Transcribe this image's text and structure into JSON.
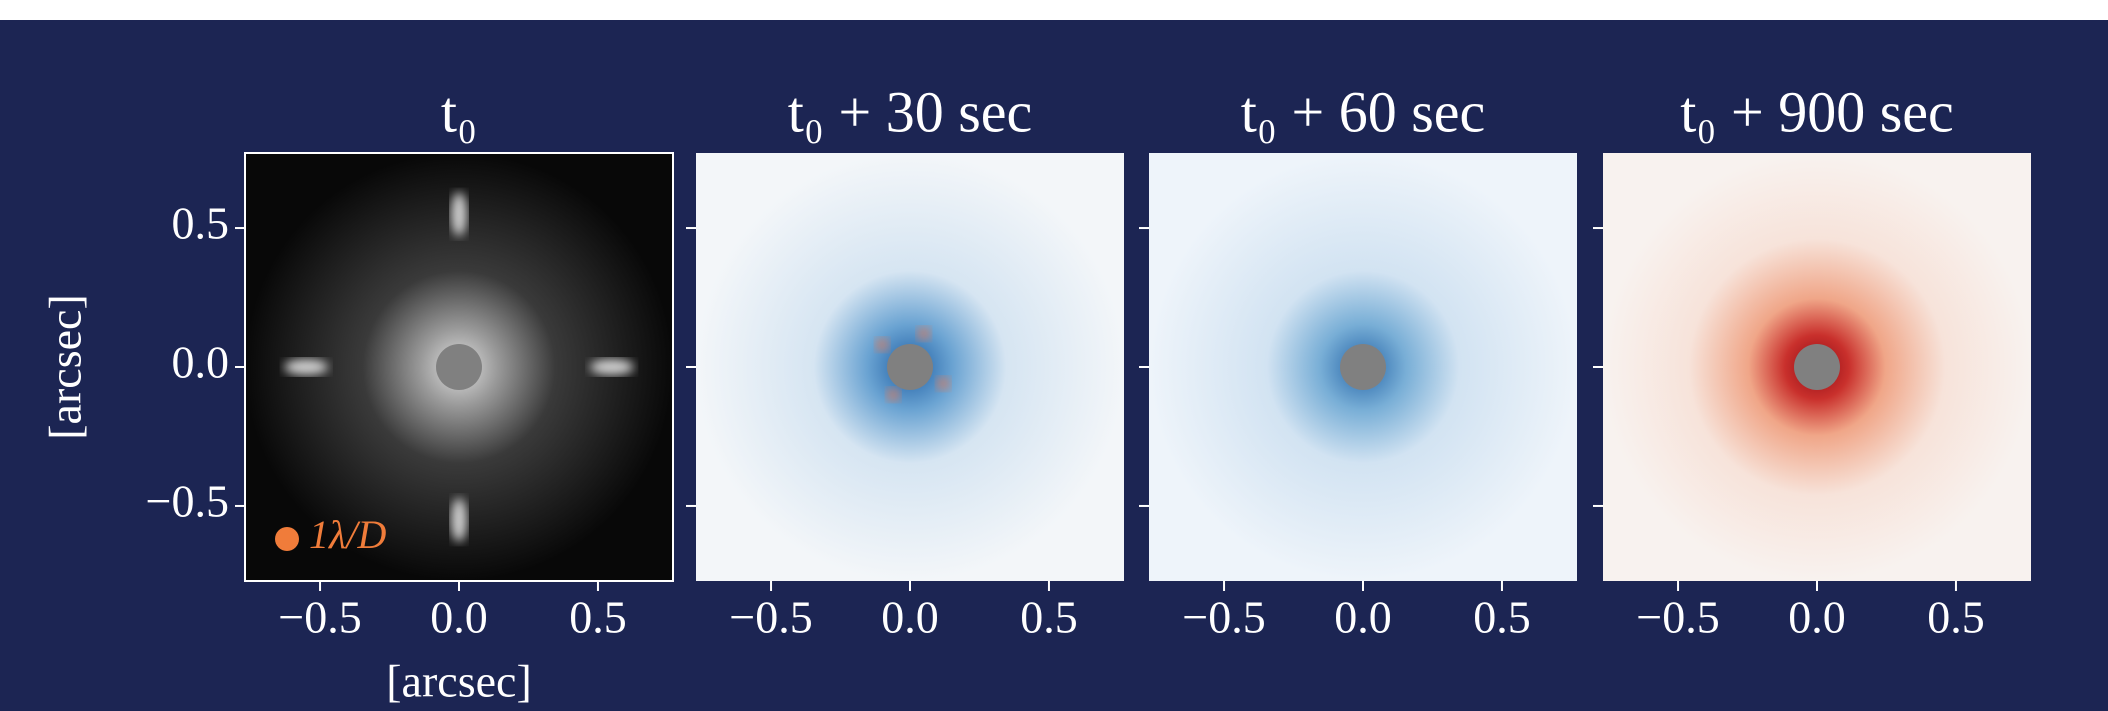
{
  "chart_data": [
    {
      "type": "image",
      "title": "t₀",
      "cmap": "gray",
      "xlim": [
        -0.77,
        0.77
      ],
      "xticks": [
        {
          "value": -0.5,
          "label": "−0.5"
        },
        {
          "value": 0,
          "label": "0.0"
        },
        {
          "value": 0.5,
          "label": "0.5"
        }
      ],
      "ylim": [
        -0.77,
        0.77
      ],
      "yticks": [
        {
          "value": -0.5,
          "label": "−0.5"
        },
        {
          "value": 0,
          "label": "0.0"
        },
        {
          "value": 0.5,
          "label": "0.5"
        }
      ],
      "xlabel": "[arcsec]",
      "ylabel": "[arcsec]",
      "legend": {
        "label": "1λ/D",
        "color": "#f07c3a"
      }
    },
    {
      "type": "image",
      "title": "t₀ + 30 sec",
      "cmap": "RdBu",
      "xlim": [
        -0.77,
        0.77
      ],
      "xticks": [
        {
          "value": -0.5,
          "label": "−0.5"
        },
        {
          "value": 0,
          "label": "0.0"
        },
        {
          "value": 0.5,
          "label": "0.5"
        }
      ],
      "ylim": [
        -0.77,
        0.77
      ],
      "yticks": [
        -0.5,
        0,
        0.5
      ]
    },
    {
      "type": "image",
      "title": "t₀ + 60 sec",
      "cmap": "Blues",
      "xlim": [
        -0.77,
        0.77
      ],
      "xticks": [
        {
          "value": -0.5,
          "label": "−0.5"
        },
        {
          "value": 0,
          "label": "0.0"
        },
        {
          "value": 0.5,
          "label": "0.5"
        }
      ],
      "ylim": [
        -0.77,
        0.77
      ],
      "yticks": [
        -0.5,
        0,
        0.5
      ]
    },
    {
      "type": "image",
      "title": "t₀ + 900 sec",
      "cmap": "Reds",
      "xlim": [
        -0.77,
        0.77
      ],
      "xticks": [
        {
          "value": -0.5,
          "label": "−0.5"
        },
        {
          "value": 0,
          "label": "0.0"
        },
        {
          "value": 0.5,
          "label": "0.5"
        }
      ],
      "ylim": [
        -0.77,
        0.77
      ],
      "yticks": [
        -0.5,
        0,
        0.5
      ]
    }
  ]
}
